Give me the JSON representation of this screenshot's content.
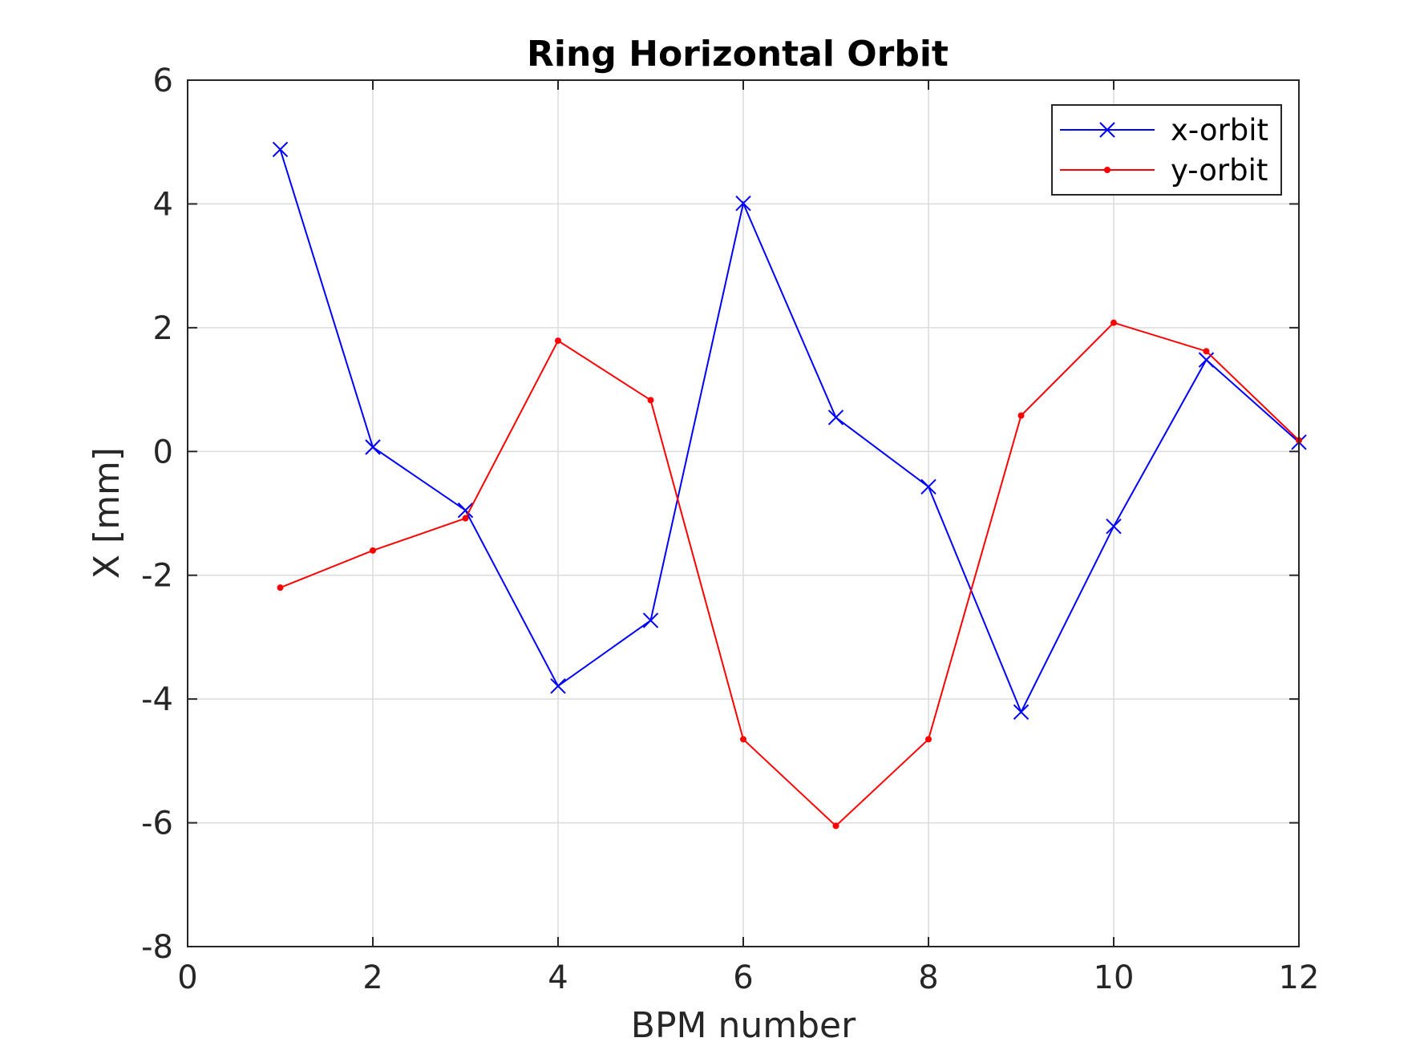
{
  "chart_data": {
    "type": "line",
    "title": "Ring Horizontal Orbit",
    "xlabel": "BPM number",
    "ylabel": "X [mm]",
    "xlim": [
      0,
      12
    ],
    "ylim": [
      -8,
      6
    ],
    "xticks": [
      0,
      2,
      4,
      6,
      8,
      10,
      12
    ],
    "yticks": [
      -8,
      -6,
      -4,
      -2,
      0,
      2,
      4,
      6
    ],
    "grid": true,
    "legend_position": "top-right",
    "x": [
      1,
      2,
      3,
      4,
      5,
      6,
      7,
      8,
      9,
      10,
      11,
      12
    ],
    "series": [
      {
        "name": "x-orbit",
        "color": "#0000ff",
        "marker": "x",
        "values": [
          4.88,
          0.07,
          -0.95,
          -3.79,
          -2.73,
          4.01,
          0.55,
          -0.57,
          -4.21,
          -1.21,
          1.48,
          0.15
        ]
      },
      {
        "name": "y-orbit",
        "color": "#ff0000",
        "marker": "dot",
        "values": [
          -2.2,
          -1.6,
          -1.08,
          1.79,
          0.83,
          -4.65,
          -6.05,
          -4.65,
          0.58,
          2.08,
          1.62,
          0.18
        ]
      }
    ]
  }
}
